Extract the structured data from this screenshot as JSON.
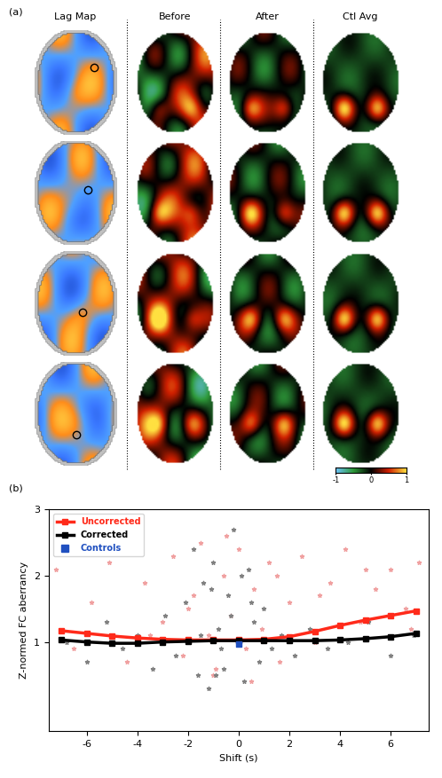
{
  "panel_a": {
    "panel_label": "(a)",
    "columns": [
      "Lag Map",
      "Before",
      "After",
      "Ctl Avg"
    ],
    "colorbar": {
      "range": [
        -1,
        1
      ],
      "ticks": [
        -1,
        0,
        1
      ]
    }
  },
  "chart_data": {
    "type": "line",
    "panel_label": "(b)",
    "x_label": "Shift (s)",
    "y_label": "Z-normed FC aberrancy",
    "xlim": [
      -7.5,
      7.5
    ],
    "xticks": [
      -6,
      -4,
      -2,
      0,
      2,
      4,
      6
    ],
    "ylim": [
      -0.35,
      3
    ],
    "yticks": [
      1,
      2,
      3
    ],
    "legend": "upper left",
    "series": [
      {
        "name": "Uncorrected",
        "color": "#ff2a1a",
        "marker": "s",
        "line_style": "solid",
        "x": [
          -7,
          -6,
          -5,
          -4,
          -3,
          -2,
          -1,
          0,
          1,
          2,
          3,
          4,
          5,
          6,
          7
        ],
        "values": [
          1.17,
          1.13,
          1.09,
          1.06,
          1.04,
          1.03,
          1.03,
          1.03,
          1.04,
          1.08,
          1.16,
          1.25,
          1.33,
          1.4,
          1.47
        ],
        "points_color": "#f0a0a0",
        "points_x": [
          -7.2,
          -6.5,
          -5.8,
          -5.1,
          -4.4,
          -3.7,
          -3.0,
          -2.6,
          -2.2,
          -1.8,
          -1.5,
          -1.2,
          -0.9,
          -0.6,
          -0.3,
          0.0,
          0.3,
          0.6,
          0.9,
          1.2,
          1.6,
          2.0,
          2.5,
          3.0,
          3.6,
          4.2,
          4.8,
          5.4,
          6.0,
          6.6,
          7.1,
          -1.0,
          -0.5,
          0.5,
          -2.0,
          1.5,
          -3.5,
          3.2,
          5.0,
          6.8
        ],
        "points_y": [
          2.1,
          0.9,
          1.6,
          2.2,
          0.7,
          1.9,
          1.3,
          2.3,
          0.8,
          1.7,
          2.5,
          1.1,
          0.6,
          2.0,
          1.4,
          2.4,
          0.9,
          1.8,
          1.2,
          2.2,
          0.7,
          1.6,
          2.3,
          1.0,
          1.9,
          2.4,
          1.3,
          1.8,
          2.1,
          1.5,
          2.2,
          0.5,
          2.6,
          0.4,
          1.5,
          2.0,
          1.1,
          1.7,
          2.1,
          1.2
        ]
      },
      {
        "name": "Corrected",
        "color": "#000000",
        "marker": "s",
        "line_style": "solid",
        "x": [
          -7,
          -6,
          -5,
          -4,
          -3,
          -2,
          -1,
          0,
          1,
          2,
          3,
          4,
          5,
          6,
          7
        ],
        "values": [
          1.03,
          1.0,
          0.98,
          0.98,
          1.0,
          1.01,
          1.02,
          1.02,
          1.02,
          1.02,
          1.02,
          1.03,
          1.05,
          1.08,
          1.13
        ],
        "points_color": "#808080",
        "points_x": [
          -6.8,
          -6.0,
          -5.2,
          -4.6,
          -4.0,
          -3.4,
          -2.9,
          -2.5,
          -2.1,
          -1.8,
          -1.6,
          -1.4,
          -1.2,
          -1.0,
          -0.8,
          -0.6,
          -0.4,
          -0.2,
          0.0,
          0.2,
          0.4,
          0.6,
          0.8,
          1.0,
          1.3,
          1.7,
          2.2,
          2.8,
          3.5,
          4.3,
          5.1,
          6.0,
          6.9,
          -1.1,
          -0.7,
          -0.3,
          0.1,
          -1.5,
          -0.9,
          0.5
        ],
        "points_y": [
          1.0,
          0.7,
          1.3,
          0.9,
          1.1,
          0.6,
          1.4,
          0.8,
          1.6,
          2.4,
          0.5,
          1.9,
          0.3,
          2.2,
          1.2,
          0.6,
          1.7,
          2.7,
          1.0,
          0.4,
          2.1,
          1.3,
          0.7,
          1.5,
          0.9,
          1.1,
          0.8,
          1.2,
          0.9,
          1.0,
          1.3,
          0.8,
          1.1,
          1.8,
          0.9,
          1.4,
          2.0,
          1.1,
          0.5,
          1.6
        ]
      },
      {
        "name": "Controls",
        "type": "scatter",
        "color": "#2050c0",
        "marker": "s",
        "x": [
          0
        ],
        "values": [
          0.97
        ]
      }
    ]
  }
}
